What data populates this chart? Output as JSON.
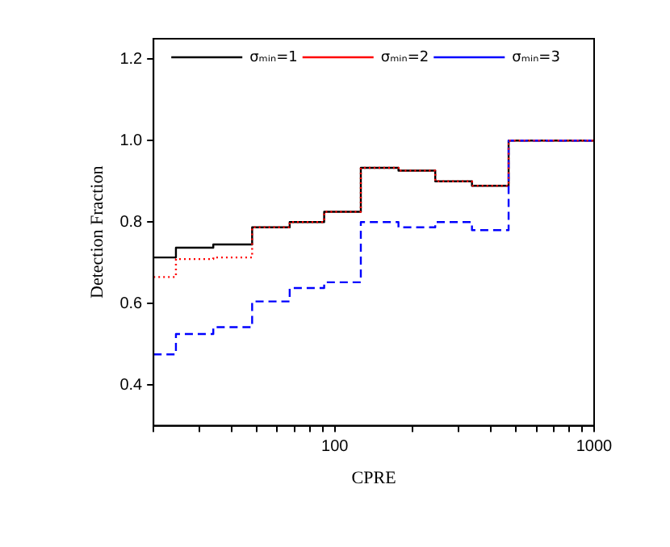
{
  "chart_data": {
    "type": "step",
    "xlabel": "CPRE",
    "ylabel": "Detection Fraction",
    "log": "x",
    "xlim": [
      20,
      1000
    ],
    "ylim": [
      0.3,
      1.25
    ],
    "xticks": [
      {
        "value": 20,
        "label": null
      },
      {
        "value": 30,
        "label": null
      },
      {
        "value": 40,
        "label": null
      },
      {
        "value": 50,
        "label": null
      },
      {
        "value": 60,
        "label": null
      },
      {
        "value": 70,
        "label": null
      },
      {
        "value": 80,
        "label": null
      },
      {
        "value": 90,
        "label": null
      },
      100,
      {
        "value": 200,
        "label": null
      },
      {
        "value": 300,
        "label": null
      },
      {
        "value": 400,
        "label": null
      },
      {
        "value": 500,
        "label": null
      },
      {
        "value": 600,
        "label": null
      },
      {
        "value": 700,
        "label": null
      },
      {
        "value": 800,
        "label": null
      },
      {
        "value": 900,
        "label": null
      },
      1000
    ],
    "yticks": [
      {
        "value": 0.4,
        "label": "0.4"
      },
      {
        "value": 0.6,
        "label": "0.6"
      },
      {
        "value": 0.8,
        "label": "0.8"
      },
      {
        "value": 1.0,
        "label": "1.0"
      },
      {
        "value": 1.2,
        "label": "1.2"
      }
    ],
    "x": [
      20,
      24.4,
      34,
      48,
      67,
      91,
      126,
      176,
      244,
      338,
      468,
      1000
    ],
    "series": [
      {
        "name": "σₘᵢₙ=1",
        "color": "#000000",
        "line_style": "solid",
        "values": [
          0.713,
          0.737,
          0.745,
          0.787,
          0.8,
          0.825,
          0.933,
          0.926,
          0.9,
          0.889,
          1.0,
          1.0
        ]
      },
      {
        "name": "σₘᵢₙ=2",
        "color": "#ff0000",
        "line_style": "dotted",
        "values": [
          0.665,
          0.709,
          0.713,
          0.787,
          0.8,
          0.825,
          0.933,
          0.926,
          0.9,
          0.889,
          1.0,
          1.0
        ]
      },
      {
        "name": "σₘᵢₙ=3",
        "color": "#0000ff",
        "line_style": "dashed",
        "values": [
          0.475,
          0.525,
          0.542,
          0.605,
          0.638,
          0.652,
          0.8,
          0.787,
          0.8,
          0.78,
          1.0,
          1.0
        ]
      }
    ],
    "legend": "top left",
    "grid": false,
    "marker": "none"
  }
}
